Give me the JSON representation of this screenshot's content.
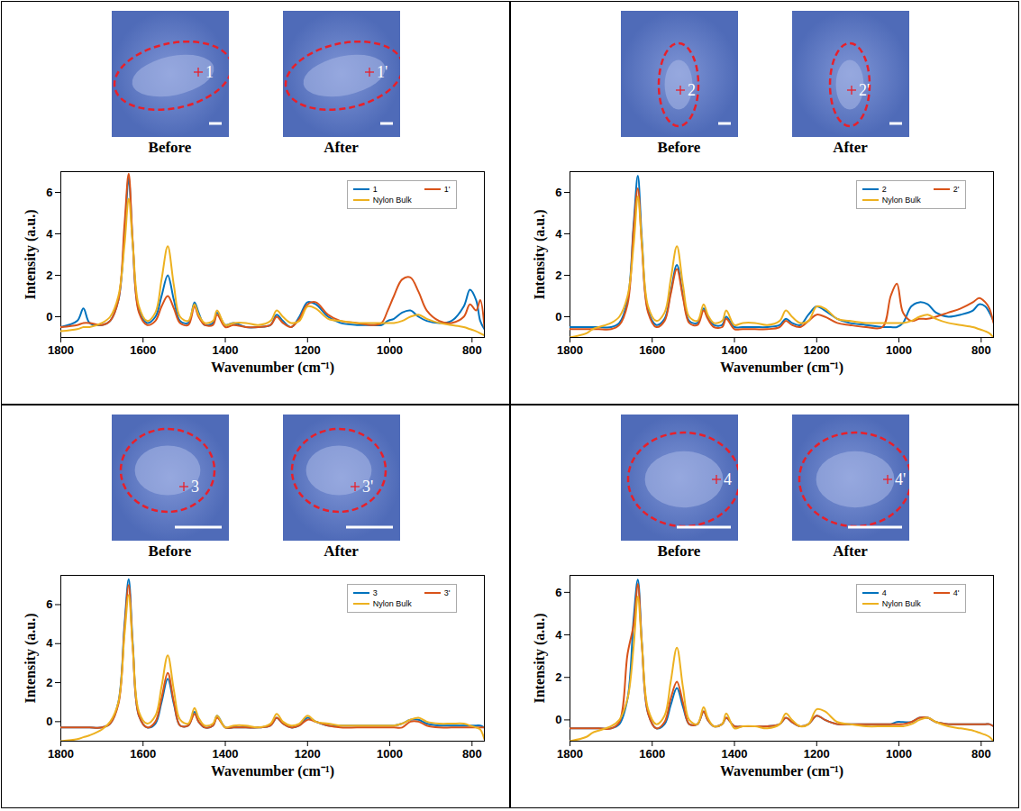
{
  "chart_data": [
    {
      "type": "line",
      "x_label": "Wavenumber (cm⁻¹)",
      "y_label": "Intensity (a.u.)",
      "images": [
        {
          "caption": "Before",
          "point_label": "1"
        },
        {
          "caption": "After",
          "point_label": "1'"
        }
      ],
      "x": [
        1800,
        1760,
        1745,
        1730,
        1700,
        1680,
        1660,
        1645,
        1635,
        1625,
        1610,
        1590,
        1570,
        1555,
        1540,
        1525,
        1510,
        1490,
        1475,
        1465,
        1450,
        1430,
        1420,
        1400,
        1380,
        1350,
        1320,
        1290,
        1275,
        1260,
        1240,
        1220,
        1200,
        1180,
        1150,
        1120,
        1080,
        1040,
        1020,
        1005,
        990,
        970,
        950,
        930,
        910,
        880,
        850,
        820,
        805,
        790,
        780,
        770
      ],
      "xlim": [
        1800,
        770
      ],
      "xticks": [
        1800,
        1600,
        1400,
        1200,
        1000,
        800
      ],
      "ylim": [
        -1,
        7
      ],
      "yticks": [
        0,
        2,
        4,
        6
      ],
      "legend": "top-right",
      "series": [
        {
          "name": "1",
          "color": "#0072BD",
          "values": [
            -0.5,
            -0.2,
            0.4,
            -0.3,
            -0.4,
            -0.2,
            0.8,
            4.0,
            6.7,
            3.5,
            0.3,
            -0.3,
            0.0,
            1.0,
            2.0,
            0.8,
            -0.2,
            -0.3,
            0.7,
            0.2,
            -0.4,
            -0.3,
            0.2,
            -0.4,
            -0.3,
            -0.5,
            -0.5,
            -0.4,
            0.1,
            -0.2,
            -0.5,
            0.0,
            0.7,
            0.6,
            0.0,
            -0.3,
            -0.4,
            -0.4,
            -0.4,
            -0.2,
            -0.1,
            0.2,
            0.3,
            0.0,
            -0.2,
            -0.3,
            -0.2,
            0.5,
            1.3,
            0.8,
            -0.2,
            -0.6
          ]
        },
        {
          "name": "1'",
          "color": "#D95319",
          "values": [
            -0.5,
            -0.4,
            -0.3,
            -0.3,
            -0.4,
            -0.2,
            0.8,
            4.5,
            6.9,
            3.6,
            0.2,
            -0.4,
            -0.2,
            0.5,
            1.0,
            0.4,
            -0.3,
            -0.4,
            0.5,
            0.0,
            -0.4,
            -0.4,
            0.1,
            -0.5,
            -0.4,
            -0.5,
            -0.5,
            -0.4,
            0.0,
            -0.3,
            -0.5,
            -0.1,
            0.6,
            0.7,
            0.1,
            -0.2,
            -0.3,
            -0.4,
            -0.3,
            0.3,
            1.0,
            1.8,
            1.9,
            1.2,
            0.3,
            -0.2,
            -0.3,
            0.0,
            0.6,
            0.3,
            0.8,
            -0.5
          ]
        },
        {
          "name": "Nylon Bulk",
          "color": "#EDB120",
          "values": [
            -0.7,
            -0.6,
            -0.5,
            -0.5,
            -0.3,
            0.0,
            1.0,
            3.5,
            5.7,
            3.5,
            0.5,
            -0.2,
            0.2,
            1.8,
            3.4,
            1.5,
            0.0,
            -0.2,
            0.6,
            0.1,
            -0.3,
            -0.2,
            0.3,
            -0.4,
            -0.3,
            -0.3,
            -0.4,
            -0.2,
            0.3,
            0.0,
            -0.3,
            -0.2,
            0.5,
            0.4,
            -0.1,
            -0.2,
            -0.3,
            -0.3,
            -0.3,
            -0.3,
            -0.3,
            -0.2,
            0.0,
            0.1,
            -0.1,
            -0.3,
            -0.4,
            -0.5,
            -0.6,
            -0.7,
            -0.8,
            -0.9
          ]
        }
      ]
    },
    {
      "type": "line",
      "x_label": "Wavenumber (cm⁻¹)",
      "y_label": "Intensity (a.u.)",
      "images": [
        {
          "caption": "Before",
          "point_label": "2"
        },
        {
          "caption": "After",
          "point_label": "2'"
        }
      ],
      "x": [
        1800,
        1760,
        1745,
        1730,
        1700,
        1680,
        1660,
        1645,
        1635,
        1625,
        1610,
        1590,
        1570,
        1555,
        1540,
        1525,
        1510,
        1490,
        1475,
        1465,
        1450,
        1430,
        1420,
        1400,
        1380,
        1350,
        1320,
        1290,
        1275,
        1260,
        1240,
        1220,
        1200,
        1180,
        1150,
        1120,
        1080,
        1040,
        1020,
        1005,
        990,
        970,
        950,
        930,
        910,
        880,
        850,
        820,
        805,
        790,
        780,
        770
      ],
      "xlim": [
        1800,
        770
      ],
      "xticks": [
        1800,
        1600,
        1400,
        1200,
        1000,
        800
      ],
      "ylim": [
        -1,
        7
      ],
      "yticks": [
        0,
        2,
        4,
        6
      ],
      "legend": "top-right",
      "series": [
        {
          "name": "2",
          "color": "#0072BD",
          "values": [
            -0.5,
            -0.5,
            -0.5,
            -0.5,
            -0.5,
            -0.3,
            0.8,
            4.5,
            6.8,
            3.7,
            0.3,
            -0.4,
            -0.1,
            1.2,
            2.5,
            1.0,
            -0.2,
            -0.3,
            0.4,
            0.0,
            -0.4,
            -0.4,
            0.0,
            -0.5,
            -0.5,
            -0.5,
            -0.5,
            -0.4,
            -0.1,
            -0.3,
            -0.4,
            0.1,
            0.5,
            0.3,
            -0.1,
            -0.3,
            -0.4,
            -0.5,
            -0.5,
            -0.5,
            -0.3,
            0.5,
            0.7,
            0.6,
            0.2,
            0.0,
            0.1,
            0.3,
            0.6,
            0.5,
            0.2,
            -0.2
          ]
        },
        {
          "name": "2'",
          "color": "#D95319",
          "values": [
            -0.6,
            -0.6,
            -0.6,
            -0.6,
            -0.6,
            -0.4,
            0.6,
            4.3,
            6.2,
            3.4,
            0.2,
            -0.5,
            -0.2,
            1.1,
            2.3,
            0.9,
            -0.3,
            -0.4,
            0.3,
            -0.1,
            -0.5,
            -0.5,
            -0.1,
            -0.6,
            -0.6,
            -0.6,
            -0.6,
            -0.5,
            -0.2,
            -0.4,
            -0.5,
            -0.2,
            0.1,
            0.0,
            -0.3,
            -0.4,
            -0.5,
            -0.5,
            1.0,
            1.6,
            0.2,
            -0.2,
            -0.1,
            -0.1,
            0.0,
            0.2,
            0.4,
            0.7,
            0.9,
            0.7,
            0.4,
            -0.3
          ]
        },
        {
          "name": "Nylon Bulk",
          "color": "#EDB120",
          "values": [
            -1.0,
            -0.8,
            -0.6,
            -0.5,
            -0.3,
            0.0,
            1.0,
            3.5,
            5.8,
            3.5,
            0.5,
            -0.2,
            0.2,
            1.8,
            3.4,
            1.5,
            0.0,
            -0.2,
            0.6,
            0.1,
            -0.3,
            -0.2,
            0.3,
            -0.4,
            -0.3,
            -0.3,
            -0.4,
            -0.2,
            0.3,
            0.0,
            -0.3,
            -0.2,
            0.5,
            0.4,
            -0.1,
            -0.2,
            -0.3,
            -0.3,
            -0.3,
            -0.3,
            -0.3,
            -0.2,
            0.0,
            0.1,
            -0.1,
            -0.3,
            -0.4,
            -0.5,
            -0.6,
            -0.7,
            -0.8,
            -1.0
          ]
        }
      ]
    },
    {
      "type": "line",
      "x_label": "Wavenumber (cm⁻¹)",
      "y_label": "Intensity (a.u.)",
      "images": [
        {
          "caption": "Before",
          "point_label": "3"
        },
        {
          "caption": "After",
          "point_label": "3'"
        }
      ],
      "x": [
        1800,
        1760,
        1745,
        1730,
        1700,
        1680,
        1660,
        1645,
        1635,
        1625,
        1610,
        1590,
        1570,
        1555,
        1540,
        1525,
        1510,
        1490,
        1475,
        1465,
        1450,
        1430,
        1420,
        1400,
        1380,
        1350,
        1320,
        1290,
        1275,
        1260,
        1240,
        1220,
        1200,
        1180,
        1150,
        1120,
        1080,
        1040,
        1020,
        1005,
        990,
        970,
        950,
        930,
        910,
        880,
        850,
        820,
        805,
        790,
        780,
        770
      ],
      "xlim": [
        1800,
        770
      ],
      "xticks": [
        1800,
        1600,
        1400,
        1200,
        1000,
        800
      ],
      "ylim": [
        -1,
        7.5
      ],
      "yticks": [
        0,
        2,
        4,
        6
      ],
      "legend": "top-right",
      "series": [
        {
          "name": "3",
          "color": "#0072BD",
          "values": [
            -0.3,
            -0.3,
            -0.3,
            -0.3,
            -0.3,
            -0.1,
            1.0,
            5.0,
            7.3,
            4.0,
            0.3,
            -0.3,
            -0.1,
            1.0,
            2.2,
            0.9,
            -0.2,
            -0.2,
            0.5,
            0.0,
            -0.3,
            -0.2,
            0.3,
            -0.3,
            -0.3,
            -0.3,
            -0.3,
            -0.2,
            0.2,
            -0.1,
            -0.3,
            -0.2,
            0.2,
            0.0,
            -0.2,
            -0.2,
            -0.2,
            -0.2,
            -0.2,
            -0.2,
            -0.2,
            -0.1,
            0.1,
            0.1,
            -0.1,
            -0.2,
            -0.2,
            -0.2,
            -0.2,
            -0.2,
            -0.2,
            -0.3
          ]
        },
        {
          "name": "3'",
          "color": "#D95319",
          "values": [
            -0.3,
            -0.3,
            -0.3,
            -0.3,
            -0.3,
            -0.1,
            0.9,
            4.8,
            7.0,
            3.8,
            0.3,
            -0.3,
            0.0,
            1.2,
            2.5,
            1.0,
            -0.2,
            -0.2,
            0.4,
            0.0,
            -0.3,
            -0.2,
            0.2,
            -0.3,
            -0.3,
            -0.3,
            -0.3,
            -0.2,
            0.2,
            -0.1,
            -0.3,
            -0.2,
            0.1,
            0.0,
            -0.2,
            -0.3,
            -0.3,
            -0.3,
            -0.3,
            -0.3,
            -0.3,
            -0.3,
            0.0,
            0.0,
            -0.2,
            -0.3,
            -0.3,
            -0.3,
            -0.3,
            -0.3,
            -0.3,
            -0.3
          ]
        },
        {
          "name": "Nylon Bulk",
          "color": "#EDB120",
          "values": [
            -1.0,
            -0.9,
            -0.8,
            -0.7,
            -0.4,
            0.0,
            1.0,
            4.5,
            6.5,
            3.8,
            0.5,
            -0.1,
            0.3,
            1.8,
            3.4,
            1.6,
            0.1,
            -0.1,
            0.7,
            0.2,
            -0.2,
            -0.1,
            0.3,
            -0.3,
            -0.2,
            -0.2,
            -0.3,
            -0.1,
            0.4,
            0.0,
            -0.2,
            -0.1,
            0.3,
            0.0,
            -0.1,
            -0.2,
            -0.2,
            -0.2,
            -0.2,
            -0.2,
            -0.2,
            -0.1,
            0.1,
            0.2,
            0.0,
            -0.1,
            -0.1,
            -0.1,
            -0.2,
            -0.3,
            -0.4,
            -0.9
          ]
        }
      ]
    },
    {
      "type": "line",
      "x_label": "Wavenumber (cm⁻¹)",
      "y_label": "Intensity (a.u.)",
      "images": [
        {
          "caption": "Before",
          "point_label": "4"
        },
        {
          "caption": "After",
          "point_label": "4'"
        }
      ],
      "x": [
        1800,
        1760,
        1745,
        1730,
        1700,
        1680,
        1660,
        1645,
        1635,
        1625,
        1610,
        1590,
        1570,
        1555,
        1540,
        1525,
        1510,
        1490,
        1475,
        1465,
        1450,
        1430,
        1420,
        1400,
        1380,
        1350,
        1320,
        1290,
        1275,
        1260,
        1240,
        1220,
        1200,
        1180,
        1150,
        1120,
        1080,
        1040,
        1020,
        1005,
        990,
        970,
        950,
        930,
        910,
        880,
        850,
        820,
        805,
        790,
        780,
        770
      ],
      "xlim": [
        1800,
        770
      ],
      "xticks": [
        1800,
        1600,
        1400,
        1200,
        1000,
        800
      ],
      "ylim": [
        -1,
        6.8
      ],
      "yticks": [
        0,
        2,
        4,
        6
      ],
      "legend": "top-right",
      "series": [
        {
          "name": "4",
          "color": "#0072BD",
          "values": [
            -0.4,
            -0.4,
            -0.4,
            -0.4,
            -0.4,
            -0.2,
            1.0,
            4.8,
            6.6,
            3.6,
            0.3,
            -0.4,
            -0.2,
            0.7,
            1.5,
            0.6,
            -0.2,
            -0.2,
            0.4,
            0.0,
            -0.3,
            -0.2,
            0.1,
            -0.3,
            -0.3,
            -0.3,
            -0.3,
            -0.2,
            0.1,
            -0.1,
            -0.3,
            -0.2,
            0.2,
            0.0,
            -0.2,
            -0.2,
            -0.2,
            -0.2,
            -0.2,
            -0.1,
            -0.1,
            -0.1,
            0.1,
            0.1,
            -0.1,
            -0.2,
            -0.2,
            -0.2,
            -0.2,
            -0.2,
            -0.2,
            -0.3
          ]
        },
        {
          "name": "4'",
          "color": "#D95319",
          "values": [
            -0.4,
            -0.4,
            -0.4,
            -0.4,
            -0.4,
            -0.1,
            3.1,
            4.5,
            6.4,
            3.5,
            0.3,
            -0.4,
            -0.1,
            1.0,
            1.8,
            0.8,
            -0.2,
            -0.2,
            0.4,
            0.0,
            -0.3,
            -0.2,
            0.1,
            -0.3,
            -0.3,
            -0.3,
            -0.3,
            -0.2,
            0.1,
            -0.1,
            -0.3,
            -0.2,
            0.2,
            0.0,
            -0.2,
            -0.2,
            -0.2,
            -0.2,
            -0.2,
            -0.2,
            -0.2,
            -0.1,
            0.1,
            0.1,
            -0.1,
            -0.2,
            -0.2,
            -0.2,
            -0.2,
            -0.2,
            -0.2,
            -0.3
          ]
        },
        {
          "name": "Nylon Bulk",
          "color": "#EDB120",
          "values": [
            -1.0,
            -0.8,
            -0.6,
            -0.5,
            -0.3,
            0.0,
            1.0,
            3.5,
            5.8,
            3.5,
            0.5,
            -0.2,
            0.2,
            1.8,
            3.4,
            1.5,
            0.0,
            -0.2,
            0.6,
            0.1,
            -0.3,
            -0.2,
            0.3,
            -0.4,
            -0.3,
            -0.3,
            -0.4,
            -0.2,
            0.3,
            0.0,
            -0.3,
            -0.2,
            0.5,
            0.4,
            -0.1,
            -0.2,
            -0.3,
            -0.3,
            -0.3,
            -0.3,
            -0.3,
            -0.2,
            0.0,
            0.1,
            -0.1,
            -0.3,
            -0.4,
            -0.5,
            -0.6,
            -0.7,
            -0.8,
            -1.0
          ]
        }
      ]
    }
  ]
}
